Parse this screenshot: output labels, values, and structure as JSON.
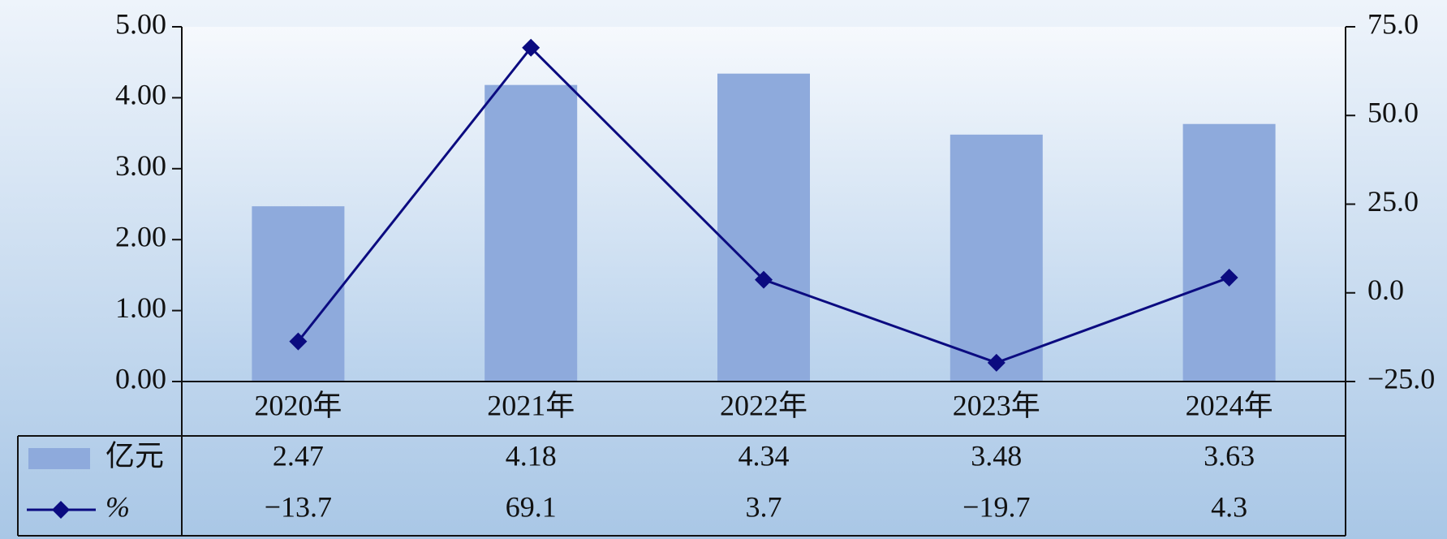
{
  "chart_data": {
    "type": "bar-line",
    "categories": [
      "2020年",
      "2021年",
      "2022年",
      "2023年",
      "2024年"
    ],
    "series": [
      {
        "name": "亿元",
        "type": "bar",
        "color": "#8eaadc",
        "values": [
          2.47,
          4.18,
          4.34,
          3.48,
          3.63
        ]
      },
      {
        "name": "%",
        "type": "line",
        "axis": "y2",
        "color": "#0b0b80",
        "values": [
          -13.7,
          69.1,
          3.7,
          -19.7,
          4.3
        ],
        "value_labels": [
          "−13.7",
          "69.1",
          "3.7",
          "−19.7",
          "4.3"
        ]
      }
    ],
    "ylim": [
      0,
      5
    ],
    "yticks": [
      {
        "value": 0,
        "label": "0.00"
      },
      {
        "value": 1,
        "label": "1.00"
      },
      {
        "value": 2,
        "label": "2.00"
      },
      {
        "value": 3,
        "label": "3.00"
      },
      {
        "value": 4,
        "label": "4.00"
      },
      {
        "value": 5,
        "label": "5.00"
      }
    ],
    "y2lim": [
      -25,
      75
    ],
    "y2ticks": [
      {
        "value": -25,
        "label": "−25.0"
      },
      {
        "value": 0,
        "label": "0.0"
      },
      {
        "value": 25,
        "label": "25.0"
      },
      {
        "value": 50,
        "label": "50.0"
      },
      {
        "value": 75,
        "label": "75.0"
      }
    ],
    "data_table": true
  }
}
